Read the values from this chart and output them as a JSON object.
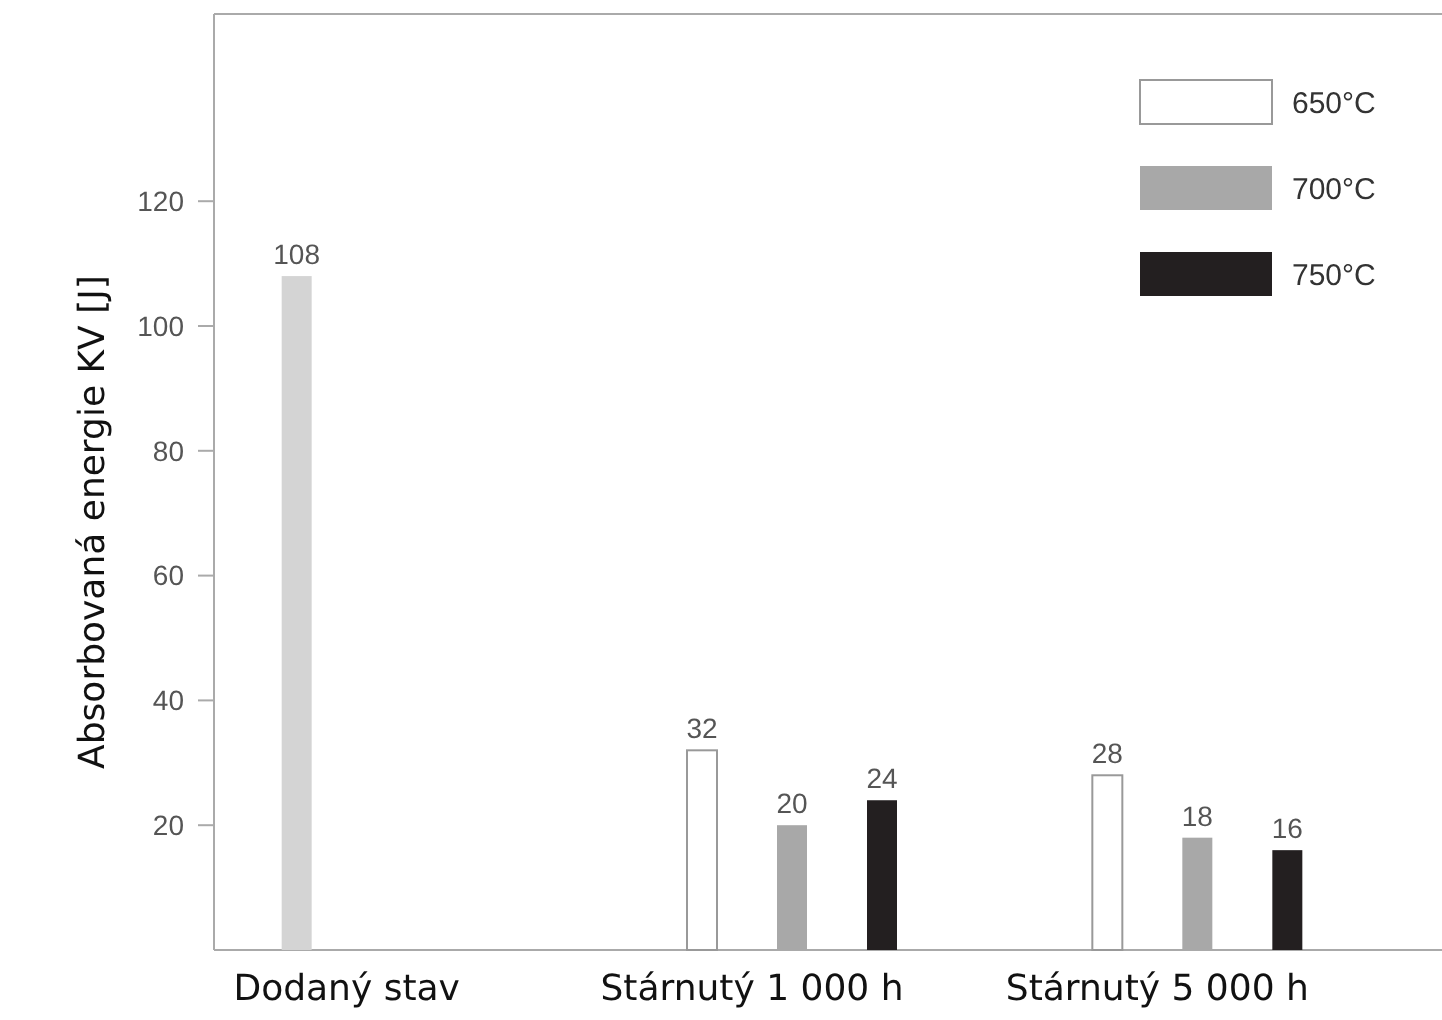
{
  "chart_data": {
    "type": "bar",
    "ylabel": "Absorbovaná energie KV [J]",
    "categories": [
      "Dodaný stav",
      "Stárnutý 1 000 h",
      "Stárnutý 5 000 h"
    ],
    "series": [
      {
        "color": "#d4d4d4",
        "values": [
          108,
          null,
          null
        ]
      },
      {
        "name": "650°C",
        "color": "#ffffff",
        "values": [
          null,
          32,
          28
        ]
      },
      {
        "name": "700°C",
        "color": "#a8a8a8",
        "values": [
          null,
          20,
          18
        ]
      },
      {
        "name": "750°C",
        "color": "#231f20",
        "values": [
          null,
          24,
          16
        ]
      }
    ],
    "ylim": [
      0,
      150
    ],
    "yticks": [
      20,
      40,
      60,
      80,
      100,
      120
    ],
    "data_labels": true,
    "legend": "top right",
    "grid": false
  }
}
